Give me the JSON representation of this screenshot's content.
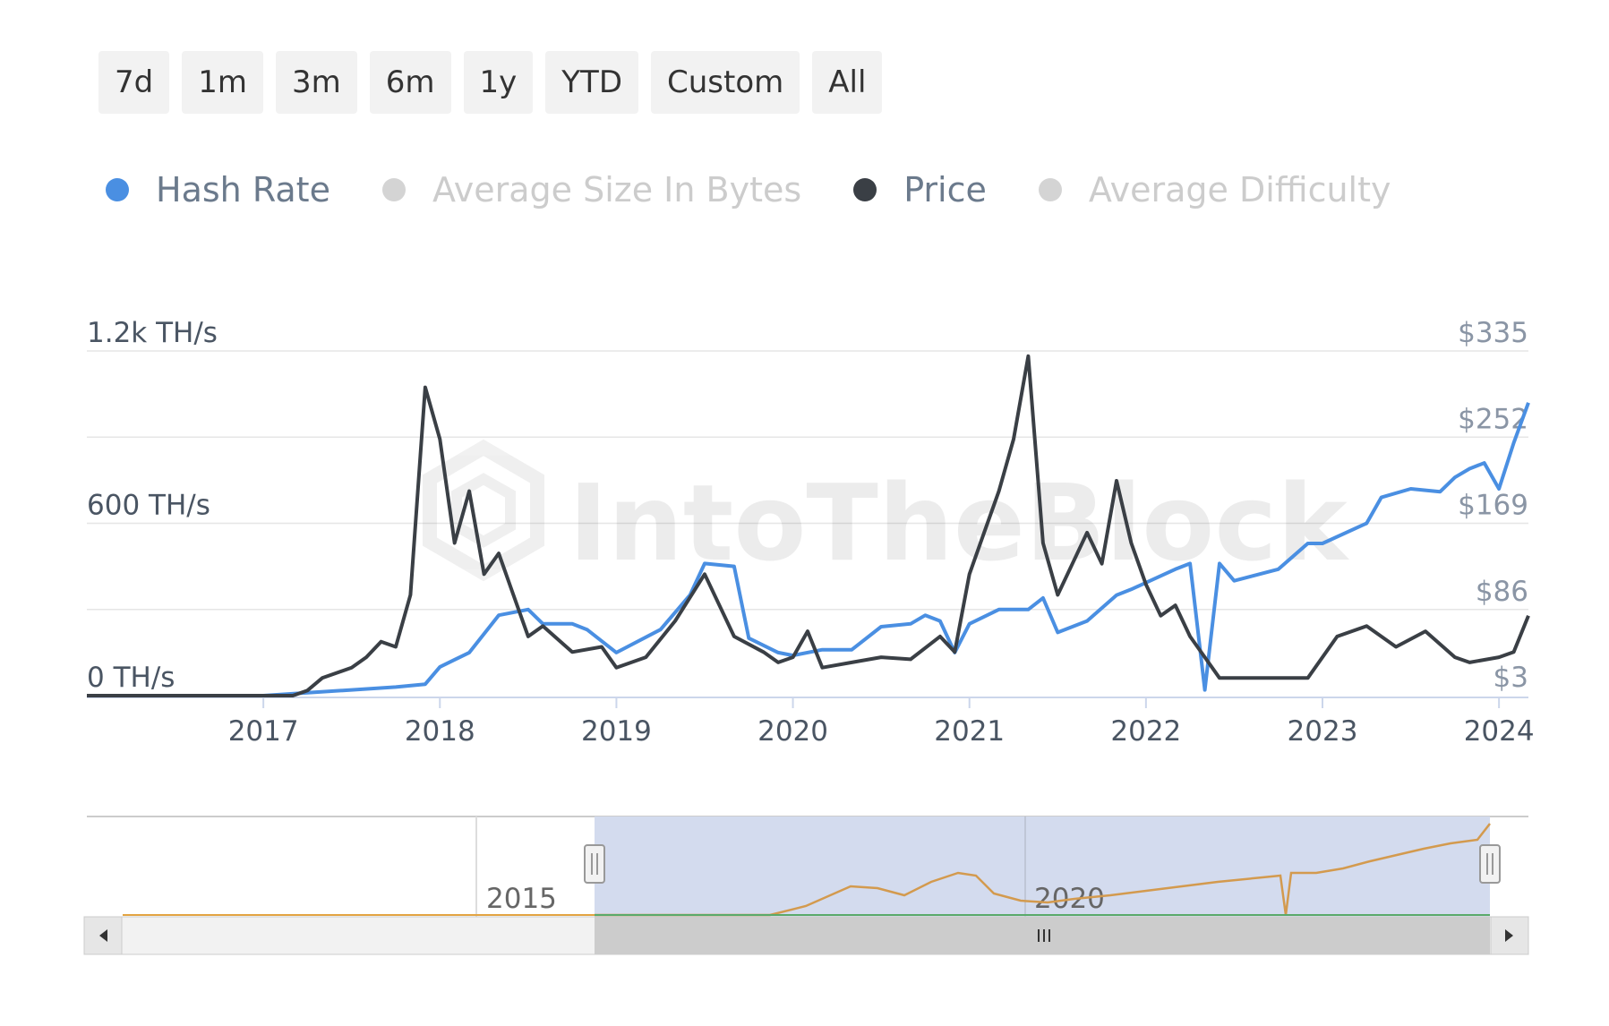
{
  "range_buttons": [
    {
      "label": "7d"
    },
    {
      "label": "1m"
    },
    {
      "label": "3m"
    },
    {
      "label": "6m"
    },
    {
      "label": "1y"
    },
    {
      "label": "YTD"
    },
    {
      "label": "Custom"
    },
    {
      "label": "All"
    }
  ],
  "legend": [
    {
      "label": "Hash Rate",
      "color": "#4a8fe2",
      "enabled": true
    },
    {
      "label": "Average Size In Bytes",
      "color": "#cccccc",
      "enabled": false
    },
    {
      "label": "Price",
      "color": "#3a3f45",
      "enabled": true
    },
    {
      "label": "Average Difficulty",
      "color": "#cccccc",
      "enabled": false
    }
  ],
  "watermark": "IntoTheBlock",
  "chart_data": {
    "type": "line",
    "x_range": [
      "2016-01",
      "2024-03"
    ],
    "x_ticks": [
      "2017",
      "2018",
      "2019",
      "2020",
      "2021",
      "2022",
      "2023",
      "2024"
    ],
    "y_left": {
      "ticks": [
        "0 TH/s",
        "600 TH/s",
        "1.2k TH/s"
      ],
      "values": [
        0,
        600,
        1200
      ],
      "range": [
        0,
        1200
      ]
    },
    "y_right": {
      "ticks": [
        "$3",
        "$86",
        "$169",
        "$252",
        "$335"
      ],
      "values": [
        3,
        86,
        169,
        252,
        335
      ],
      "range": [
        3,
        335
      ]
    },
    "grid": true,
    "legend_position": "top-left",
    "series": [
      {
        "name": "Hash Rate",
        "axis": "left",
        "color": "#4a8fe2",
        "x": [
          "2016-01",
          "2016-06",
          "2017-01",
          "2017-04",
          "2017-07",
          "2017-10",
          "2017-12",
          "2018-01",
          "2018-03",
          "2018-05",
          "2018-07",
          "2018-08",
          "2018-10",
          "2018-11",
          "2019-01",
          "2019-04",
          "2019-06",
          "2019-07",
          "2019-09",
          "2019-10",
          "2019-12",
          "2020-01",
          "2020-03",
          "2020-05",
          "2020-07",
          "2020-09",
          "2020-10",
          "2020-11",
          "2020-12",
          "2021-01",
          "2021-03",
          "2021-05",
          "2021-06",
          "2021-07",
          "2021-09",
          "2021-11",
          "2021-12",
          "2022-03",
          "2022-04",
          "2022-05",
          "2022-06",
          "2022-07",
          "2022-10",
          "2022-12",
          "2023-01",
          "2023-04",
          "2023-05",
          "2023-07",
          "2023-09",
          "2023-10",
          "2023-11",
          "2023-12",
          "2024-01",
          "2024-02",
          "2024-03"
        ],
        "values": [
          0,
          0,
          0,
          10,
          20,
          30,
          40,
          100,
          150,
          280,
          300,
          250,
          250,
          230,
          150,
          230,
          350,
          460,
          450,
          200,
          150,
          140,
          160,
          160,
          240,
          250,
          280,
          260,
          150,
          250,
          300,
          300,
          340,
          220,
          260,
          350,
          370,
          440,
          460,
          20,
          460,
          400,
          440,
          530,
          530,
          600,
          690,
          720,
          710,
          760,
          790,
          810,
          720,
          880,
          1020
        ]
      },
      {
        "name": "Price",
        "axis": "right",
        "color": "#3a3f45",
        "x": [
          "2016-01",
          "2016-06",
          "2017-01",
          "2017-03",
          "2017-04",
          "2017-05",
          "2017-07",
          "2017-08",
          "2017-09",
          "2017-10",
          "2017-11",
          "2017-12",
          "2018-01",
          "2018-02",
          "2018-03",
          "2018-04",
          "2018-05",
          "2018-06",
          "2018-07",
          "2018-08",
          "2018-10",
          "2018-12",
          "2019-01",
          "2019-03",
          "2019-05",
          "2019-07",
          "2019-09",
          "2019-11",
          "2019-12",
          "2020-01",
          "2020-02",
          "2020-03",
          "2020-05",
          "2020-07",
          "2020-09",
          "2020-11",
          "2020-12",
          "2021-01",
          "2021-02",
          "2021-03",
          "2021-04",
          "2021-05",
          "2021-06",
          "2021-07",
          "2021-08",
          "2021-09",
          "2021-10",
          "2021-11",
          "2021-12",
          "2022-01",
          "2022-02",
          "2022-03",
          "2022-04",
          "2022-05",
          "2022-06",
          "2022-09",
          "2022-12",
          "2023-02",
          "2023-04",
          "2023-06",
          "2023-08",
          "2023-10",
          "2023-11",
          "2024-01",
          "2024-02",
          "2024-03"
        ],
        "values": [
          3,
          3,
          3,
          3,
          8,
          20,
          30,
          40,
          55,
          50,
          100,
          300,
          250,
          150,
          200,
          120,
          140,
          100,
          60,
          70,
          45,
          50,
          30,
          40,
          75,
          120,
          60,
          45,
          35,
          40,
          65,
          30,
          35,
          40,
          38,
          60,
          45,
          120,
          160,
          200,
          250,
          330,
          150,
          100,
          130,
          160,
          130,
          210,
          150,
          110,
          80,
          90,
          60,
          40,
          20,
          20,
          20,
          60,
          70,
          50,
          65,
          40,
          35,
          40,
          45,
          80
        ]
      }
    ],
    "navigator": {
      "label_ticks": [
        "2015",
        "2020"
      ]
    }
  }
}
